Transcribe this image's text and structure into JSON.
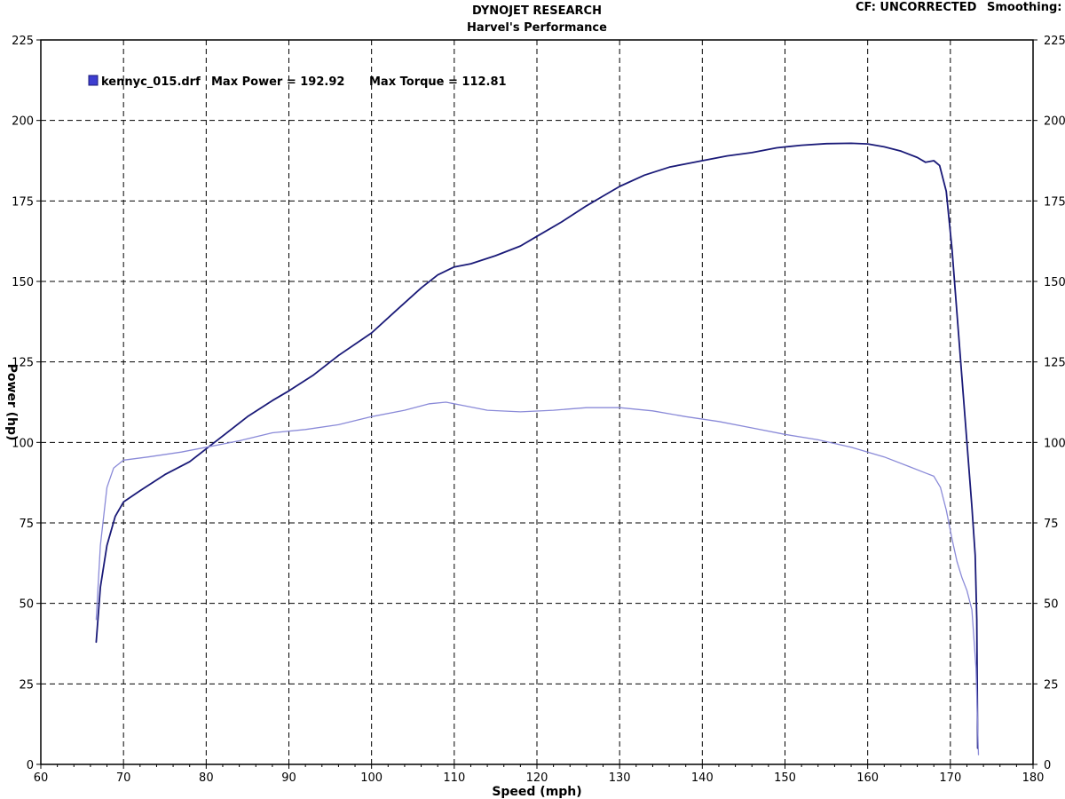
{
  "header": {
    "title": "DYNOJET RESEARCH",
    "subtitle": "Harvel's Performance",
    "correction": "CF: UNCORRECTED",
    "smoothing": "Smoothing:"
  },
  "legend": {
    "run_name": "kennyc_015.drf",
    "max_power_label": "Max Power = 192.92",
    "max_torque_label": "Max Torque = 112.81"
  },
  "chart_data": {
    "type": "line",
    "title": "DYNOJET RESEARCH",
    "subtitle": "Harvel's Performance",
    "xlabel": "Speed (mph)",
    "ylabel": "Power (hp)",
    "xlim": [
      60,
      180
    ],
    "ylim": [
      0,
      225
    ],
    "x_ticks": [
      60,
      70,
      80,
      90,
      100,
      110,
      120,
      130,
      140,
      150,
      160,
      170,
      180
    ],
    "y_ticks": [
      0,
      25,
      50,
      75,
      100,
      125,
      150,
      175,
      200,
      225
    ],
    "grid": true,
    "legend_position": "top-left",
    "series": [
      {
        "name": "Max Power = 192.92",
        "color": "#1a1a78",
        "x": [
          66.7,
          67.2,
          68,
          69,
          70,
          72,
          75,
          78,
          80,
          82,
          85,
          88,
          90,
          93,
          96,
          100,
          103,
          106,
          108,
          110,
          112,
          115,
          118,
          120,
          123,
          126,
          128,
          130,
          133,
          136,
          138,
          140,
          143,
          146,
          149,
          152,
          155,
          158,
          160,
          162,
          164,
          166,
          167,
          168,
          168.7,
          169.5,
          170.2,
          170.8,
          171.4,
          172,
          172.6,
          173,
          173.2,
          173.3
        ],
        "y": [
          38,
          55,
          68,
          77,
          81.5,
          85,
          90,
          94,
          98,
          102,
          108,
          113,
          116,
          121,
          127,
          134,
          141,
          148,
          152,
          154.5,
          155.5,
          158,
          161,
          164,
          168.5,
          173.5,
          176.5,
          179.5,
          183,
          185.5,
          186.5,
          187.5,
          189,
          190,
          191.5,
          192.3,
          192.8,
          192.9,
          192.7,
          191.8,
          190.5,
          188.5,
          187,
          187.5,
          186,
          178,
          160,
          140,
          120,
          100,
          80,
          65,
          45,
          5
        ]
      },
      {
        "name": "Max Torque = 112.81",
        "color": "#8a8ad8",
        "x": [
          66.7,
          67.2,
          68,
          68.8,
          70,
          73,
          77,
          80,
          84,
          88,
          92,
          96,
          100,
          104,
          107,
          109,
          111,
          114,
          118,
          122,
          126,
          130,
          134,
          138,
          142,
          146,
          150,
          154,
          158,
          162,
          165,
          167,
          168,
          168.8,
          169.5,
          170.2,
          170.8,
          171.4,
          172,
          172.6,
          173.1,
          173.4
        ],
        "y": [
          45,
          68,
          86,
          92,
          94.5,
          95.5,
          97,
          98.5,
          100.5,
          103,
          104,
          105.5,
          108,
          110,
          112,
          112.5,
          111.5,
          110,
          109.5,
          110,
          110.8,
          110.8,
          109.8,
          108,
          106.5,
          104.5,
          102.5,
          100.8,
          98.5,
          95.5,
          92.5,
          90.5,
          89.5,
          86,
          79,
          70,
          63,
          58,
          54,
          48,
          30,
          3
        ]
      }
    ]
  }
}
